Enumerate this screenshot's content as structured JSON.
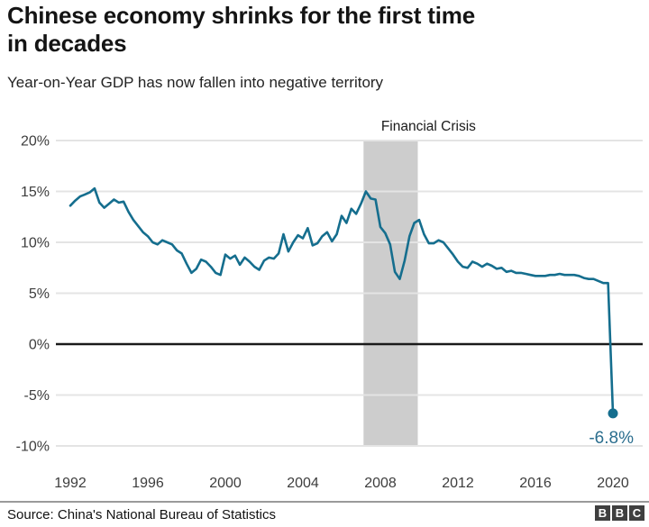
{
  "header": {
    "title_line1": "Chinese economy shrinks for the first time",
    "title_line2": "in decades",
    "subtitle": "Year-on-Year GDP has now fallen into negative territory"
  },
  "chart_data": {
    "type": "line",
    "title": "Chinese economy shrinks for the first time in decades",
    "subtitle": "Year-on-Year GDP has now fallen into negative territory",
    "series_name": "Year-on-Year GDP growth",
    "unit": "%",
    "frequency": "quarterly",
    "x_start_year": 1992,
    "x_step_years": 0.25,
    "values": [
      13.6,
      14.1,
      14.5,
      14.7,
      14.9,
      15.3,
      13.9,
      13.4,
      13.8,
      14.2,
      13.9,
      14.0,
      13.0,
      12.2,
      11.6,
      11.0,
      10.6,
      10.0,
      9.8,
      10.2,
      10.0,
      9.8,
      9.2,
      8.9,
      7.9,
      7.0,
      7.4,
      8.3,
      8.1,
      7.6,
      7.0,
      6.8,
      8.8,
      8.4,
      8.7,
      7.8,
      8.5,
      8.1,
      7.6,
      7.3,
      8.2,
      8.5,
      8.4,
      8.9,
      10.8,
      9.1,
      10.0,
      10.7,
      10.4,
      11.4,
      9.7,
      9.9,
      10.6,
      11.0,
      10.1,
      10.8,
      12.6,
      11.9,
      13.3,
      12.8,
      13.8,
      15.0,
      14.3,
      14.2,
      11.5,
      10.9,
      9.8,
      7.1,
      6.4,
      8.2,
      10.6,
      11.9,
      12.2,
      10.8,
      9.9,
      9.9,
      10.2,
      10.0,
      9.4,
      8.8,
      8.1,
      7.6,
      7.5,
      8.1,
      7.9,
      7.6,
      7.9,
      7.7,
      7.4,
      7.5,
      7.1,
      7.2,
      7.0,
      7.0,
      6.9,
      6.8,
      6.7,
      6.7,
      6.7,
      6.8,
      6.8,
      6.9,
      6.8,
      6.8,
      6.8,
      6.7,
      6.5,
      6.4,
      6.4,
      6.2,
      6.0,
      6.0,
      -6.8
    ],
    "end_point": {
      "period": "2020 Q1",
      "value": -6.8,
      "label": "-6.8%"
    },
    "shaded_region": {
      "label": "Financial Crisis",
      "x_start": 2007.13,
      "x_end": 2009.93
    },
    "y_tick_values": [
      20,
      15,
      10,
      5,
      0,
      -5,
      -10
    ],
    "y_tick_labels": [
      "20%",
      "15%",
      "10%",
      "5%",
      "0%",
      "-5%",
      "-10%"
    ],
    "x_ticks": [
      1992,
      1996,
      2000,
      2004,
      2008,
      2012,
      2016,
      2020
    ],
    "ylim": [
      -10,
      20
    ],
    "grid": true,
    "legend": "none",
    "colors": {
      "line": "#156E8E",
      "end_label": "#2B6E8E",
      "band": "#CDCDCD",
      "grid": "#E4E4E4",
      "zero_line": "#1A1A1A",
      "tick_text": "#3D3D3D",
      "annotation_text": "#1A1A1A"
    }
  },
  "footer": {
    "source": "Source: China's National Bureau of Statistics",
    "logo": [
      "B",
      "B",
      "C"
    ]
  }
}
